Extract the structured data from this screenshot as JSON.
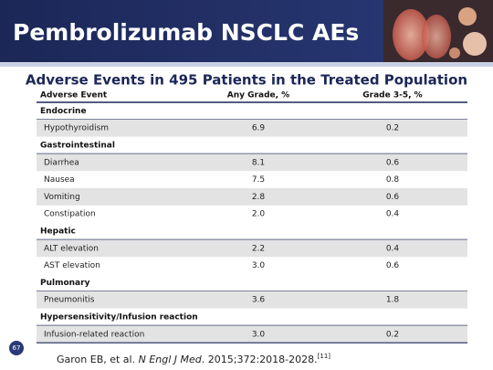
{
  "header": {
    "title": "Pembrolizumab NSCLC AEs"
  },
  "table": {
    "title": "Adverse Events in 495 Patients in the Treated Population",
    "columns": [
      "Adverse Event",
      "Any Grade, %",
      "Grade 3-5, %"
    ],
    "groups": [
      {
        "name": "Endocrine",
        "rows": [
          [
            "Hypothyroidism",
            "6.9",
            "0.2"
          ]
        ]
      },
      {
        "name": "Gastrointestinal",
        "rows": [
          [
            "Diarrhea",
            "8.1",
            "0.6"
          ],
          [
            "Nausea",
            "7.5",
            "0.8"
          ],
          [
            "Vomiting",
            "2.8",
            "0.6"
          ],
          [
            "Constipation",
            "2.0",
            "0.4"
          ]
        ]
      },
      {
        "name": "Hepatic",
        "rows": [
          [
            "ALT elevation",
            "2.2",
            "0.4"
          ],
          [
            "AST elevation",
            "3.0",
            "0.6"
          ]
        ]
      },
      {
        "name": "Pulmonary",
        "rows": [
          [
            "Pneumonitis",
            "3.6",
            "1.8"
          ]
        ]
      },
      {
        "name": "Hypersensitivity/Infusion reaction",
        "rows": [
          [
            "Infusion-related reaction",
            "3.0",
            "0.2"
          ]
        ]
      }
    ]
  },
  "citation": {
    "authors": "Garon EB, et al.",
    "journal": "N Engl J Med",
    "details": ". 2015;372:2018-2028.",
    "ref": "[11]"
  },
  "page_number": "67"
}
